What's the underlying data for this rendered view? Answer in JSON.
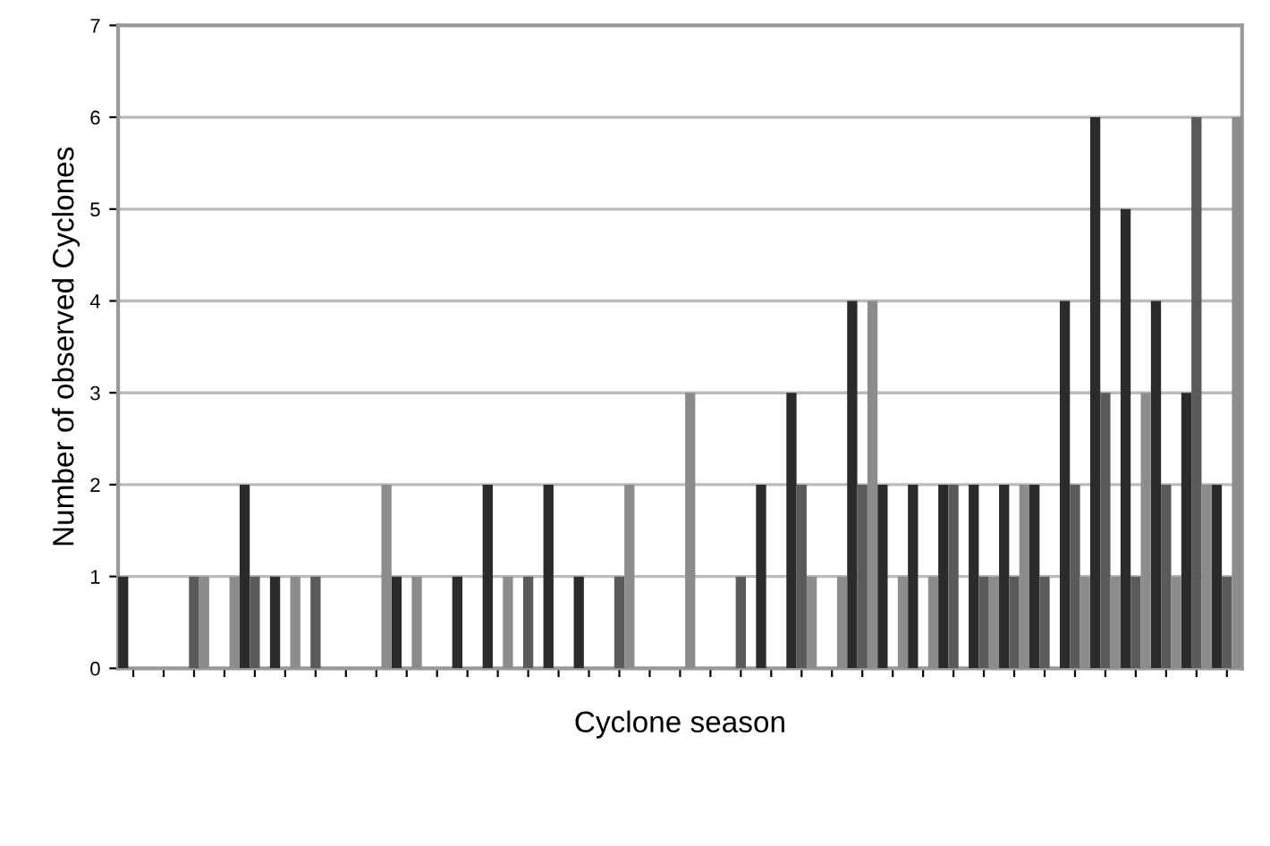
{
  "chart_data": {
    "type": "bar",
    "xlabel": "Cyclone season",
    "ylabel": "Number of observed Cyclones",
    "categories": [
      null,
      null,
      null,
      null,
      null,
      null,
      null,
      null,
      null,
      null,
      null,
      null,
      null,
      null,
      null,
      null,
      null,
      null,
      null,
      null,
      null,
      null,
      null,
      null,
      null,
      null,
      null,
      null,
      null,
      null,
      null,
      null,
      null,
      null,
      null,
      null,
      null
    ],
    "series": [
      {
        "color": "#2b2b2b",
        "values": [
          1,
          0,
          0,
          0,
          2,
          1,
          0,
          0,
          0,
          1,
          0,
          1,
          2,
          0,
          2,
          1,
          0,
          0,
          0,
          0,
          0,
          2,
          3,
          0,
          4,
          2,
          2,
          2,
          2,
          2,
          2,
          4,
          6,
          5,
          4,
          3,
          2
        ]
      },
      {
        "color": "#5a5a5a",
        "values": [
          0,
          0,
          1,
          0,
          1,
          0,
          1,
          0,
          0,
          0,
          0,
          0,
          0,
          1,
          0,
          0,
          1,
          0,
          0,
          0,
          1,
          0,
          2,
          0,
          2,
          0,
          0,
          2,
          1,
          1,
          1,
          2,
          3,
          1,
          2,
          6,
          1
        ]
      },
      {
        "color": "#8c8c8c",
        "values": [
          0,
          0,
          1,
          1,
          0,
          1,
          0,
          0,
          2,
          1,
          0,
          0,
          1,
          0,
          0,
          0,
          2,
          0,
          3,
          0,
          0,
          0,
          1,
          1,
          4,
          1,
          1,
          0,
          1,
          2,
          0,
          1,
          1,
          3,
          1,
          2,
          6
        ]
      }
    ],
    "ylim": [
      0,
      7
    ],
    "yticks": [
      0,
      1,
      2,
      3,
      4,
      5,
      6,
      7
    ],
    "grid": "y",
    "legend": false
  }
}
